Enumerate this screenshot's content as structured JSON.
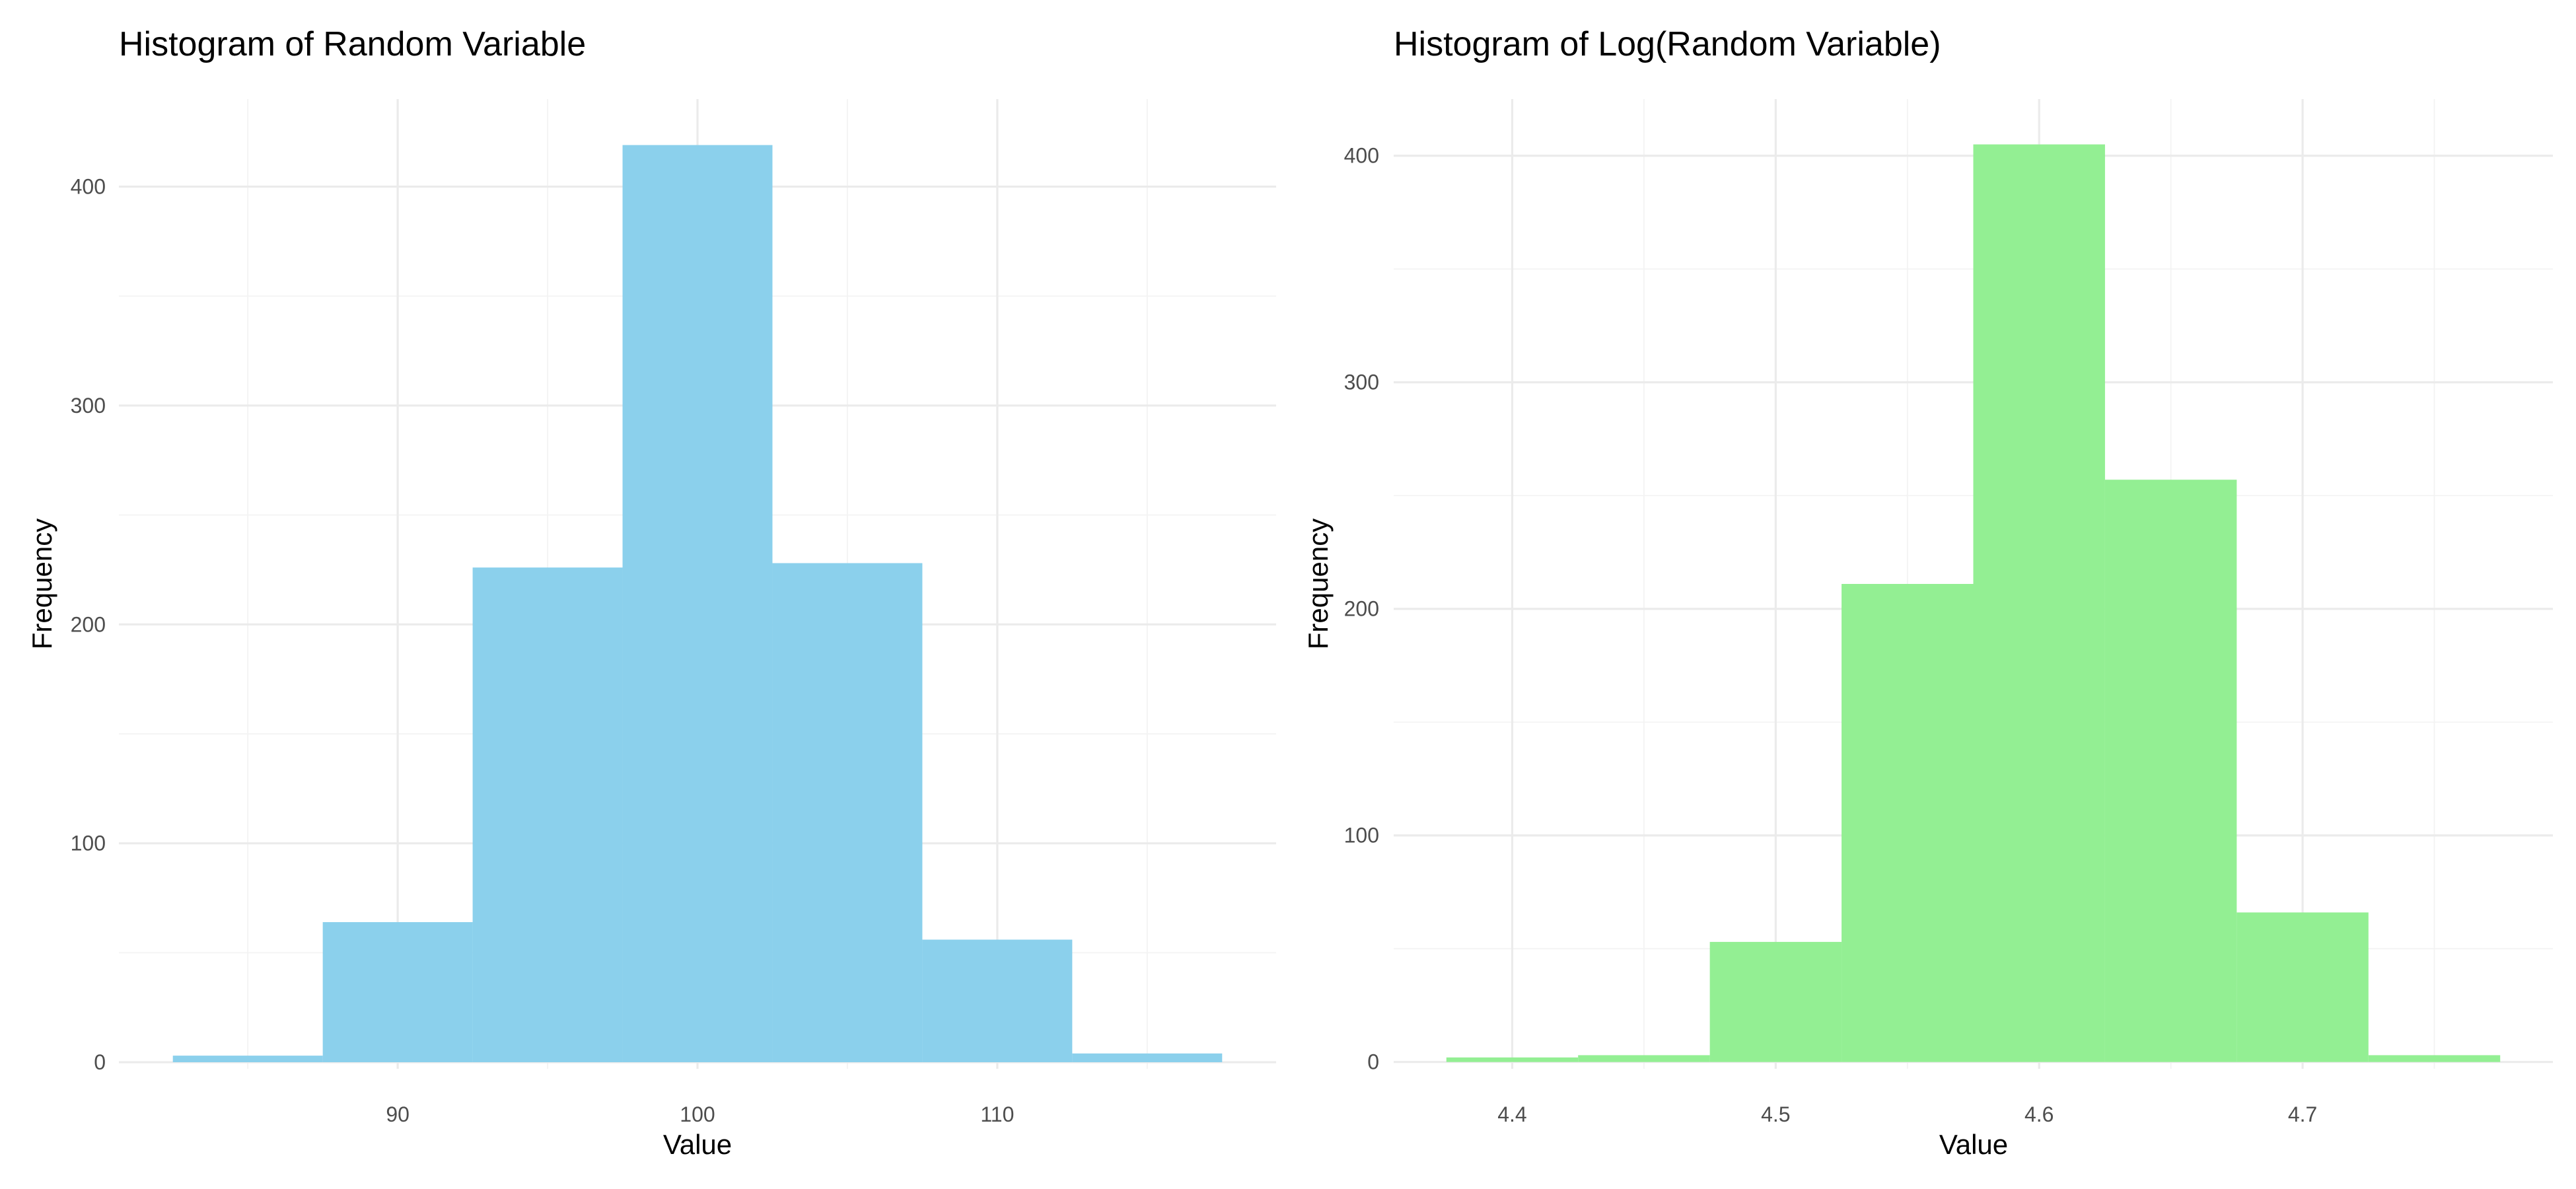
{
  "chart_data": [
    {
      "type": "histogram",
      "title": "Histogram of Random Variable",
      "xlabel": "Value",
      "ylabel": "Frequency",
      "fill_color": "#87CEEB",
      "bin_width": 5,
      "bins": [
        {
          "start": 82.5,
          "end": 87.5,
          "count": 3
        },
        {
          "start": 87.5,
          "end": 92.5,
          "count": 64
        },
        {
          "start": 92.5,
          "end": 97.5,
          "count": 226
        },
        {
          "start": 97.5,
          "end": 102.5,
          "count": 419
        },
        {
          "start": 102.5,
          "end": 107.5,
          "count": 228
        },
        {
          "start": 107.5,
          "end": 112.5,
          "count": 56
        },
        {
          "start": 112.5,
          "end": 117.5,
          "count": 4
        }
      ],
      "xlim": [
        80.7,
        119.3
      ],
      "ylim": [
        -3,
        440
      ],
      "x_ticks": [
        90,
        100,
        110
      ],
      "x_tick_labels": [
        "90",
        "100",
        "110"
      ],
      "x_minor": [
        85,
        95,
        105,
        115
      ],
      "y_ticks": [
        0,
        100,
        200,
        300,
        400
      ],
      "y_tick_labels": [
        "0",
        "100",
        "200",
        "300",
        "400"
      ],
      "y_minor": [
        50,
        150,
        250,
        350
      ],
      "grid": true,
      "legend": "none"
    },
    {
      "type": "histogram",
      "title": "Histogram of Log(Random Variable)",
      "xlabel": "Value",
      "ylabel": "Frequency",
      "fill_color": "#90EE90",
      "bin_width": 0.05,
      "bins": [
        {
          "start": 4.375,
          "end": 4.425,
          "count": 2
        },
        {
          "start": 4.425,
          "end": 4.475,
          "count": 3
        },
        {
          "start": 4.475,
          "end": 4.525,
          "count": 53
        },
        {
          "start": 4.525,
          "end": 4.575,
          "count": 211
        },
        {
          "start": 4.575,
          "end": 4.625,
          "count": 405
        },
        {
          "start": 4.625,
          "end": 4.675,
          "count": 257
        },
        {
          "start": 4.675,
          "end": 4.725,
          "count": 66
        },
        {
          "start": 4.725,
          "end": 4.775,
          "count": 3
        }
      ],
      "xlim": [
        4.355,
        4.795
      ],
      "ylim": [
        -3,
        425
      ],
      "x_ticks": [
        4.4,
        4.5,
        4.6,
        4.7
      ],
      "x_tick_labels": [
        "4.4",
        "4.5",
        "4.6",
        "4.7"
      ],
      "x_minor": [
        4.45,
        4.55,
        4.65,
        4.75
      ],
      "y_ticks": [
        0,
        100,
        200,
        300,
        400
      ],
      "y_tick_labels": [
        "0",
        "100",
        "200",
        "300",
        "400"
      ],
      "y_minor": [
        50,
        150,
        250,
        350
      ],
      "grid": true,
      "legend": "none"
    }
  ]
}
